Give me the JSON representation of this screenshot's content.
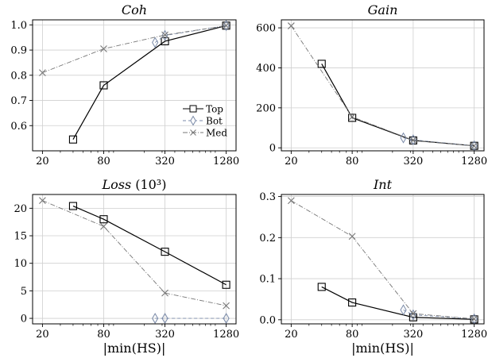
{
  "chart_data": [
    {
      "type": "line",
      "title": "Coh",
      "title_suffix": "",
      "xlabel": "",
      "x_scale": "log2",
      "xlim": [
        16,
        1600
      ],
      "ylim": [
        0.5,
        1.02
      ],
      "x_ticks": [
        20,
        80,
        320,
        1280
      ],
      "y_ticks": [
        0.6,
        0.7,
        0.8,
        0.9,
        1.0
      ],
      "y_tick_labels": [
        "0.6",
        "0.7",
        "0.8",
        "0.9",
        "1.0"
      ],
      "grid": true,
      "legend": "lower-right",
      "series": [
        {
          "name": "Top",
          "color": "#000000",
          "dash": "",
          "marker": "square",
          "x": [
            40,
            80,
            320,
            1280
          ],
          "y": [
            0.545,
            0.76,
            0.935,
            0.997
          ]
        },
        {
          "name": "Bot",
          "color": "#7a8aa8",
          "dash": "4,3",
          "marker": "diamond",
          "x": [
            256,
            320,
            1280
          ],
          "y": [
            0.93,
            0.958,
            0.997
          ]
        },
        {
          "name": "Med",
          "color": "#777777",
          "dash": "6,2,1,2",
          "marker": "x",
          "x": [
            20,
            80,
            320,
            1280
          ],
          "y": [
            0.81,
            0.905,
            0.96,
            0.997
          ]
        }
      ]
    },
    {
      "type": "line",
      "title": "Gain",
      "title_suffix": "",
      "xlabel": "",
      "x_scale": "log2",
      "xlim": [
        16,
        1600
      ],
      "ylim": [
        -15,
        640
      ],
      "x_ticks": [
        20,
        80,
        320,
        1280
      ],
      "y_ticks": [
        0,
        200,
        400,
        600
      ],
      "y_tick_labels": [
        "0",
        "200",
        "400",
        "600"
      ],
      "grid": true,
      "series": [
        {
          "name": "Top",
          "color": "#000000",
          "dash": "",
          "marker": "square",
          "x": [
            40,
            80,
            320,
            1280
          ],
          "y": [
            420,
            150,
            37,
            10
          ]
        },
        {
          "name": "Bot",
          "color": "#7a8aa8",
          "dash": "4,3",
          "marker": "diamond",
          "x": [
            256,
            320,
            1280
          ],
          "y": [
            50,
            40,
            10
          ]
        },
        {
          "name": "Med",
          "color": "#777777",
          "dash": "6,2,1,2",
          "marker": "x",
          "x": [
            20,
            80,
            320,
            1280
          ],
          "y": [
            610,
            155,
            38,
            10
          ]
        }
      ]
    },
    {
      "type": "line",
      "title": "Loss",
      "title_suffix": "(10³)",
      "xlabel": "|min(HS)|",
      "x_scale": "log2",
      "xlim": [
        16,
        1600
      ],
      "ylim": [
        -1,
        22.5
      ],
      "x_ticks": [
        20,
        80,
        320,
        1280
      ],
      "y_ticks": [
        0,
        5,
        10,
        15,
        20
      ],
      "y_tick_labels": [
        "0",
        "5",
        "10",
        "15",
        "20"
      ],
      "grid": true,
      "series": [
        {
          "name": "Top",
          "color": "#000000",
          "dash": "",
          "marker": "square",
          "x": [
            40,
            80,
            320,
            1280
          ],
          "y": [
            20.4,
            18.0,
            12.1,
            6.1
          ]
        },
        {
          "name": "Bot",
          "color": "#7a8aa8",
          "dash": "4,3",
          "marker": "diamond",
          "x": [
            256,
            320,
            1280
          ],
          "y": [
            0,
            0,
            0
          ]
        },
        {
          "name": "Med",
          "color": "#777777",
          "dash": "6,2,1,2",
          "marker": "x",
          "x": [
            20,
            80,
            320,
            1280
          ],
          "y": [
            21.4,
            16.7,
            4.6,
            2.3
          ]
        }
      ]
    },
    {
      "type": "line",
      "title": "Int",
      "title_suffix": "",
      "xlabel": "|min(HS)|",
      "x_scale": "log2",
      "xlim": [
        16,
        1600
      ],
      "ylim": [
        -0.01,
        0.305
      ],
      "x_ticks": [
        20,
        80,
        320,
        1280
      ],
      "y_ticks": [
        0.0,
        0.1,
        0.2,
        0.3
      ],
      "y_tick_labels": [
        "0.0",
        "0.1",
        "0.2",
        "0.3"
      ],
      "grid": true,
      "series": [
        {
          "name": "Top",
          "color": "#000000",
          "dash": "",
          "marker": "square",
          "x": [
            40,
            80,
            320,
            1280
          ],
          "y": [
            0.08,
            0.042,
            0.006,
            0.001
          ]
        },
        {
          "name": "Bot",
          "color": "#7a8aa8",
          "dash": "4,3",
          "marker": "diamond",
          "x": [
            256,
            320,
            1280
          ],
          "y": [
            0.024,
            0.012,
            0.002
          ]
        },
        {
          "name": "Med",
          "color": "#777777",
          "dash": "6,2,1,2",
          "marker": "x",
          "x": [
            20,
            80,
            320,
            1280
          ],
          "y": [
            0.29,
            0.203,
            0.015,
            0.002
          ]
        }
      ]
    }
  ]
}
